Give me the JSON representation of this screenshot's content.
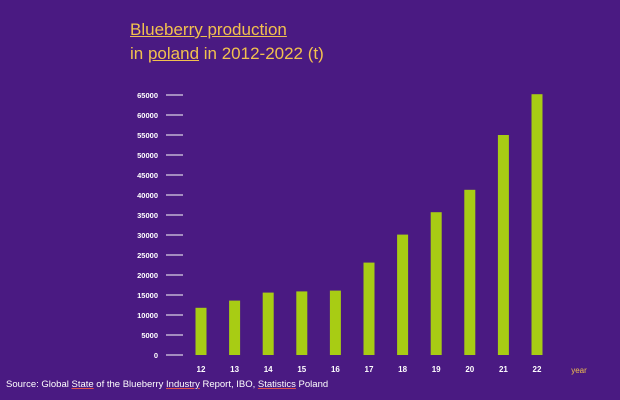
{
  "title": {
    "line1": "Blueberry production",
    "line2_prefix": "in ",
    "line2_link": "poland",
    "line2_suffix": " in 2012-2022 (t)"
  },
  "source": {
    "prefix": "Source: Global ",
    "link1": "State",
    "mid1": " of the Blueberry ",
    "link2": "Industry",
    "mid2": " Report, IBO,  ",
    "link3": "Statistics",
    "suffix": " Poland"
  },
  "colors": {
    "background": "#4a1a82",
    "bar": "#a8cc14",
    "title": "#f2c14e",
    "axis_text": "#ffffff",
    "xlabel": "#f2c14e"
  },
  "chart_data": {
    "type": "bar",
    "title": "Blueberry production in poland in 2012-2022 (t)",
    "xlabel": "year",
    "ylabel": "",
    "categories": [
      "12",
      "13",
      "14",
      "15",
      "16",
      "17",
      "18",
      "19",
      "20",
      "21",
      "22"
    ],
    "values": [
      11800,
      13600,
      15600,
      15900,
      16100,
      23100,
      30100,
      35700,
      41300,
      55000,
      65200
    ],
    "ylim": [
      0,
      65000
    ],
    "yticks": [
      "0",
      "5000",
      "10000",
      "15000",
      "20000",
      "25000",
      "30000",
      "35000",
      "40000",
      "45000",
      "50000",
      "55000",
      "60000",
      "65000"
    ],
    "grid": false,
    "legend": "none"
  }
}
